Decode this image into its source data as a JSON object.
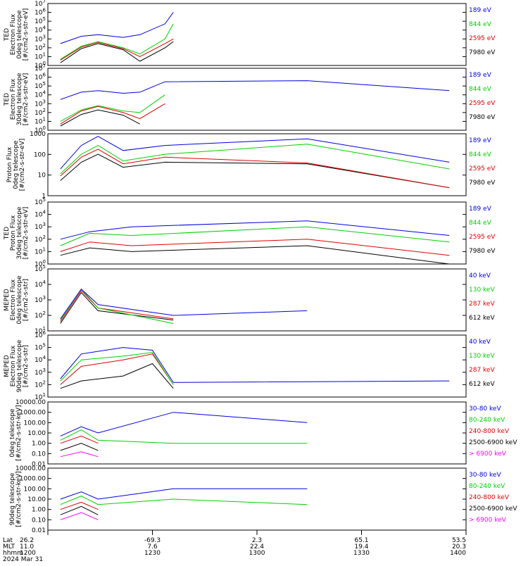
{
  "colors": {
    "black": "#000000",
    "red": "#e00000",
    "green": "#00d000",
    "blue": "#0000e0",
    "magenta": "#ff00ff"
  },
  "footer": {
    "row_labels": [
      "Lat",
      "MLT",
      "hhmm",
      "2024 Mar 31"
    ],
    "ticks": [
      {
        "lat": "26.2",
        "mlt": "11.0",
        "hhmm": "1200"
      },
      {
        "lat": "-69.3",
        "mlt": "7.6",
        "hhmm": "1230"
      },
      {
        "lat": "2.3",
        "mlt": "22.4",
        "hhmm": "1300"
      },
      {
        "lat": "65.1",
        "mlt": "19.4",
        "hhmm": "1330"
      },
      {
        "lat": "53.5",
        "mlt": "20.3",
        "hhmm": "1400"
      }
    ]
  },
  "chart_data": [
    {
      "type": "line",
      "ylabel": [
        "TED",
        "Electron Flux",
        "0deg telescope",
        "[#/cm2-s-str-eV]"
      ],
      "scale": "log",
      "ylim": [
        1,
        10000000
      ],
      "tick_labels": [
        "10^0",
        "10^1",
        "10^2",
        "10^3",
        "10^4",
        "10^5",
        "10^6",
        "10^7"
      ],
      "series": [
        {
          "name": "7980 eV",
          "color": "black",
          "values": [
            [
              0.03,
              2
            ],
            [
              0.08,
              80
            ],
            [
              0.12,
              300
            ],
            [
              0.18,
              60
            ],
            [
              0.22,
              3
            ],
            [
              0.28,
              100
            ],
            [
              0.3,
              500
            ]
          ]
        },
        {
          "name": "2595 eV",
          "color": "red",
          "values": [
            [
              0.03,
              4
            ],
            [
              0.08,
              120
            ],
            [
              0.12,
              400
            ],
            [
              0.18,
              80
            ],
            [
              0.22,
              10
            ],
            [
              0.28,
              300
            ],
            [
              0.3,
              1000
            ]
          ]
        },
        {
          "name": "844 eV",
          "color": "green",
          "values": [
            [
              0.03,
              5
            ],
            [
              0.08,
              150
            ],
            [
              0.12,
              500
            ],
            [
              0.18,
              100
            ],
            [
              0.22,
              20
            ],
            [
              0.28,
              1000
            ],
            [
              0.3,
              50000
            ]
          ]
        },
        {
          "name": "189 eV",
          "color": "blue",
          "values": [
            [
              0.03,
              300
            ],
            [
              0.08,
              2000
            ],
            [
              0.12,
              3000
            ],
            [
              0.18,
              1500
            ],
            [
              0.22,
              3000
            ],
            [
              0.28,
              50000
            ],
            [
              0.3,
              1000000
            ]
          ]
        }
      ]
    },
    {
      "type": "line",
      "ylabel": [
        "TED",
        "Electron Flux",
        "30deg telescope",
        "[#/cm2-s-str-eV]"
      ],
      "scale": "log",
      "ylim": [
        1,
        10000000
      ],
      "tick_labels": [
        "10^0",
        "10^1",
        "10^2",
        "10^3",
        "10^4",
        "10^5",
        "10^6",
        "10^7"
      ],
      "series": [
        {
          "name": "7980 eV",
          "color": "black",
          "values": [
            [
              0.03,
              3
            ],
            [
              0.08,
              60
            ],
            [
              0.12,
              200
            ],
            [
              0.18,
              50
            ],
            [
              0.22,
              5
            ]
          ]
        },
        {
          "name": "2595 eV",
          "color": "red",
          "values": [
            [
              0.03,
              5
            ],
            [
              0.08,
              150
            ],
            [
              0.12,
              500
            ],
            [
              0.18,
              100
            ],
            [
              0.22,
              20
            ],
            [
              0.28,
              1000
            ]
          ]
        },
        {
          "name": "844 eV",
          "color": "green",
          "values": [
            [
              0.03,
              10
            ],
            [
              0.08,
              200
            ],
            [
              0.12,
              600
            ],
            [
              0.18,
              150
            ],
            [
              0.22,
              100
            ],
            [
              0.28,
              10000
            ]
          ]
        },
        {
          "name": "189 eV",
          "color": "blue",
          "values": [
            [
              0.03,
              3000
            ],
            [
              0.08,
              20000
            ],
            [
              0.12,
              30000
            ],
            [
              0.18,
              15000
            ],
            [
              0.22,
              20000
            ],
            [
              0.28,
              300000
            ],
            [
              0.62,
              400000
            ],
            [
              0.96,
              30000
            ]
          ]
        }
      ]
    },
    {
      "type": "line",
      "ylabel": [
        "Proton Flux",
        "0deg telescope",
        "[#/cm2-s-str-eV]"
      ],
      "scale": "log",
      "ylim": [
        1,
        5000
      ],
      "tick_labels": [
        "1",
        "10",
        "100",
        "1000"
      ],
      "series": [
        {
          "name": "7980 eV",
          "color": "black",
          "values": [
            [
              0.03,
              8
            ],
            [
              0.08,
              100
            ],
            [
              0.12,
              300
            ],
            [
              0.18,
              50
            ],
            [
              0.28,
              100
            ],
            [
              0.62,
              80
            ],
            [
              0.96,
              3
            ]
          ]
        },
        {
          "name": "2595 eV",
          "color": "red",
          "values": [
            [
              0.03,
              15
            ],
            [
              0.08,
              200
            ],
            [
              0.12,
              600
            ],
            [
              0.18,
              80
            ],
            [
              0.28,
              200
            ],
            [
              0.62,
              90
            ],
            [
              0.96,
              3
            ]
          ]
        },
        {
          "name": "844 eV",
          "color": "green",
          "values": [
            [
              0.03,
              20
            ],
            [
              0.08,
              300
            ],
            [
              0.12,
              1000
            ],
            [
              0.18,
              120
            ],
            [
              0.28,
              300
            ],
            [
              0.62,
              1200
            ],
            [
              0.96,
              40
            ]
          ]
        },
        {
          "name": "189 eV",
          "color": "blue",
          "values": [
            [
              0.03,
              40
            ],
            [
              0.08,
              1000
            ],
            [
              0.12,
              3500
            ],
            [
              0.18,
              500
            ],
            [
              0.28,
              1000
            ],
            [
              0.62,
              2500
            ],
            [
              0.96,
              100
            ]
          ]
        }
      ]
    },
    {
      "type": "line",
      "ylabel": [
        "TED",
        "Proton Flux",
        "30deg telescope",
        "[#/cm2-s-str-eV]"
      ],
      "scale": "log",
      "ylim": [
        1,
        100000
      ],
      "tick_labels": [
        "10^0",
        "10^1",
        "10^2",
        "10^3",
        "10^4",
        "10^5"
      ],
      "series": [
        {
          "name": "7980 eV",
          "color": "black",
          "values": [
            [
              0.03,
              5
            ],
            [
              0.1,
              20
            ],
            [
              0.2,
              10
            ],
            [
              0.62,
              30
            ],
            [
              0.96,
              1
            ]
          ]
        },
        {
          "name": "2595 eV",
          "color": "red",
          "values": [
            [
              0.03,
              10
            ],
            [
              0.1,
              60
            ],
            [
              0.2,
              30
            ],
            [
              0.62,
              100
            ],
            [
              0.96,
              5
            ]
          ]
        },
        {
          "name": "844 eV",
          "color": "green",
          "values": [
            [
              0.03,
              30
            ],
            [
              0.1,
              300
            ],
            [
              0.2,
              200
            ],
            [
              0.62,
              1000
            ],
            [
              0.96,
              60
            ]
          ]
        },
        {
          "name": "189 eV",
          "color": "blue",
          "values": [
            [
              0.03,
              100
            ],
            [
              0.1,
              400
            ],
            [
              0.2,
              1000
            ],
            [
              0.62,
              3000
            ],
            [
              0.96,
              200
            ]
          ]
        }
      ]
    },
    {
      "type": "line",
      "ylabel": [
        "MEPED",
        "Electron Flux",
        "0deg telescope",
        "[#/cm2-s-str]"
      ],
      "scale": "log",
      "ylim": [
        10,
        100000
      ],
      "tick_labels": [
        "10^1",
        "10^2",
        "10^3",
        "10^4",
        "10^5"
      ],
      "series": [
        {
          "name": "612 keV",
          "color": "black",
          "values": [
            [
              0.03,
              30
            ],
            [
              0.08,
              3000
            ],
            [
              0.12,
              200
            ],
            [
              0.3,
              50
            ]
          ]
        },
        {
          "name": "287 keV",
          "color": "red",
          "values": [
            [
              0.03,
              40
            ],
            [
              0.08,
              4000
            ],
            [
              0.12,
              300
            ],
            [
              0.3,
              60
            ]
          ]
        },
        {
          "name": "130 keV",
          "color": "green",
          "values": [
            [
              0.03,
              50
            ],
            [
              0.08,
              5000
            ],
            [
              0.12,
              300
            ],
            [
              0.3,
              30
            ]
          ]
        },
        {
          "name": "40 keV",
          "color": "blue",
          "values": [
            [
              0.03,
              60
            ],
            [
              0.08,
              5000
            ],
            [
              0.12,
              500
            ],
            [
              0.3,
              100
            ],
            [
              0.62,
              200
            ]
          ]
        }
      ]
    },
    {
      "type": "line",
      "ylabel": [
        "MEPED",
        "Electron Flux",
        "90deg telescope",
        "[#/cm2-s-str]"
      ],
      "scale": "log",
      "ylim": [
        10,
        1000000
      ],
      "tick_labels": [
        "10^1",
        "10^2",
        "10^3",
        "10^4",
        "10^5",
        "10^6"
      ],
      "series": [
        {
          "name": "612 keV",
          "color": "black",
          "values": [
            [
              0.03,
              50
            ],
            [
              0.08,
              200
            ],
            [
              0.18,
              500
            ],
            [
              0.25,
              5000
            ],
            [
              0.3,
              50
            ]
          ]
        },
        {
          "name": "287 keV",
          "color": "red",
          "values": [
            [
              0.03,
              100
            ],
            [
              0.08,
              3000
            ],
            [
              0.18,
              10000
            ],
            [
              0.25,
              30000
            ],
            [
              0.3,
              100
            ]
          ]
        },
        {
          "name": "130 keV",
          "color": "green",
          "values": [
            [
              0.03,
              200
            ],
            [
              0.08,
              10000
            ],
            [
              0.18,
              20000
            ],
            [
              0.25,
              40000
            ],
            [
              0.3,
              100
            ]
          ]
        },
        {
          "name": "40 keV",
          "color": "blue",
          "values": [
            [
              0.03,
              300
            ],
            [
              0.08,
              30000
            ],
            [
              0.18,
              100000
            ],
            [
              0.25,
              60000
            ],
            [
              0.3,
              150
            ],
            [
              0.96,
              200
            ]
          ]
        }
      ]
    },
    {
      "type": "line",
      "ylabel": [
        "0deg telescope",
        "[#/cm2-s-str-keV]"
      ],
      "scale": "log",
      "ylim": [
        0.01,
        10000
      ],
      "tick_labels": [
        "10000.00",
        "1000.00",
        "100.00",
        "10.00",
        "1.00",
        "0.10",
        "0.01"
      ],
      "series": [
        {
          "name": "> 6900 keV",
          "color": "magenta",
          "values": [
            [
              0.03,
              0.05
            ],
            [
              0.08,
              0.15
            ],
            [
              0.12,
              0.05
            ]
          ]
        },
        {
          "name": "2500-6900 keV",
          "color": "black",
          "values": [
            [
              0.03,
              0.2
            ],
            [
              0.08,
              1.0
            ],
            [
              0.12,
              0.2
            ]
          ]
        },
        {
          "name": "240-800 keV",
          "color": "red",
          "values": [
            [
              0.03,
              1.0
            ],
            [
              0.08,
              5.0
            ],
            [
              0.12,
              1.0
            ]
          ]
        },
        {
          "name": "80-240 keV",
          "color": "green",
          "values": [
            [
              0.03,
              2.0
            ],
            [
              0.08,
              20.0
            ],
            [
              0.12,
              2.0
            ],
            [
              0.3,
              1.0
            ],
            [
              0.62,
              1.0
            ]
          ]
        },
        {
          "name": "30-80 keV",
          "color": "blue",
          "values": [
            [
              0.03,
              5.0
            ],
            [
              0.08,
              40.0
            ],
            [
              0.12,
              10.0
            ],
            [
              0.3,
              1000.0
            ],
            [
              0.62,
              100.0
            ]
          ]
        }
      ]
    },
    {
      "type": "line",
      "ylabel": [
        "90deg telescope",
        "[#/cm2-s-str-keV]"
      ],
      "scale": "log",
      "ylim": [
        0.01,
        10000
      ],
      "tick_labels": [
        "10000.00",
        "1000.00",
        "100.00",
        "10.00",
        "1.00",
        "0.10",
        "0.01"
      ],
      "series": [
        {
          "name": "> 6900 keV",
          "color": "magenta",
          "values": [
            [
              0.03,
              0.1
            ],
            [
              0.08,
              0.5
            ],
            [
              0.12,
              0.1
            ]
          ]
        },
        {
          "name": "2500-6900 keV",
          "color": "black",
          "values": [
            [
              0.03,
              0.3
            ],
            [
              0.08,
              2.0
            ],
            [
              0.12,
              0.3
            ]
          ]
        },
        {
          "name": "240-800 keV",
          "color": "red",
          "values": [
            [
              0.03,
              1.0
            ],
            [
              0.08,
              5.0
            ],
            [
              0.12,
              1.0
            ]
          ]
        },
        {
          "name": "80-240 keV",
          "color": "green",
          "values": [
            [
              0.03,
              3.0
            ],
            [
              0.08,
              20.0
            ],
            [
              0.12,
              3.0
            ],
            [
              0.3,
              10.0
            ],
            [
              0.62,
              3.0
            ]
          ]
        },
        {
          "name": "30-80 keV",
          "color": "blue",
          "values": [
            [
              0.03,
              10.0
            ],
            [
              0.08,
              50.0
            ],
            [
              0.12,
              10.0
            ],
            [
              0.3,
              100.0
            ],
            [
              0.62,
              100.0
            ]
          ]
        }
      ]
    }
  ]
}
